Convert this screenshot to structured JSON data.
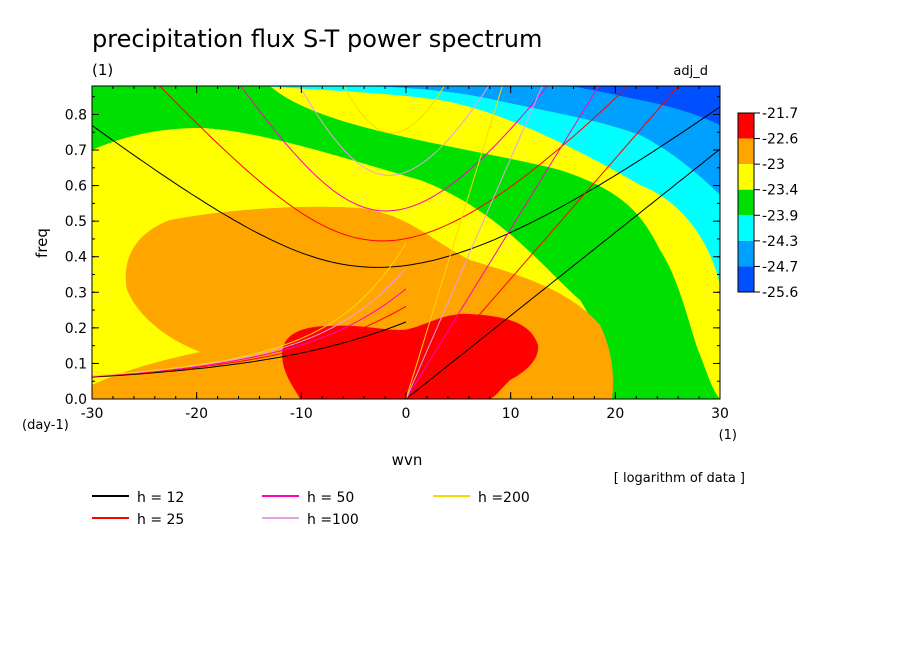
{
  "chart_data": {
    "type": "heatmap",
    "title": "precipitation flux S-T power spectrum",
    "subtitle_left": "(1)",
    "subtitle_right": "adj_d",
    "xlabel": "wvn",
    "ylabel": "freq",
    "x_unit": "(1)",
    "y_unit": "(day-1)",
    "xlim": [
      -30,
      30
    ],
    "ylim": [
      0.0,
      0.88
    ],
    "x_ticks": [
      "-30",
      "-20",
      "-10",
      "0",
      "10",
      "20",
      "30"
    ],
    "y_ticks": [
      "0.0",
      "0.1",
      "0.2",
      "0.3",
      "0.4",
      "0.5",
      "0.6",
      "0.7",
      "0.8"
    ],
    "data_note": "[ logarithm of data ]",
    "colorbar": {
      "labels": [
        "-21.7",
        "-22.6",
        "-23",
        "-23.4",
        "-23.9",
        "-24.3",
        "-24.7",
        "-25.6"
      ],
      "colors": [
        "#ff0000",
        "#ffa500",
        "#ffff00",
        "#00e000",
        "#00ffff",
        "#00a0ff",
        "#0050ff"
      ]
    },
    "regions": [
      {
        "level": "-21.7 and above",
        "approx_extent": "wvn -12 to 12, freq 0.0 to 0.24"
      },
      {
        "level": "-22.6 to -21.7",
        "approx_extent": "wvn -26 to 20, freq 0.0 to 0.54"
      },
      {
        "level": "-23 to -22.6",
        "approx_extent": "wvn -30 to 27, freq 0.0 to 0.75"
      },
      {
        "level": "-23.4 to -23",
        "approx_extent": "freq up to 0.88, lower-left to right side"
      },
      {
        "level": "-23.9 to -23.4",
        "approx_extent": "upper band, wvn -14 to 30"
      },
      {
        "level": "-24.3 to -23.9",
        "approx_extent": "upper band, wvn -4 to 30"
      },
      {
        "level": "-24.7 to -24.3",
        "approx_extent": "top right, wvn 20 to 30"
      }
    ],
    "series": [
      {
        "name": "h = 12",
        "color": "#000000",
        "h": 12
      },
      {
        "name": "h = 25",
        "color": "#ff0000",
        "h": 25
      },
      {
        "name": "h = 50",
        "color": "#ff00c0",
        "h": 50
      },
      {
        "name": "h =100",
        "color": "#e6a0e6",
        "h": 100
      },
      {
        "name": "h =200",
        "color": "#ffd700",
        "h": 200
      }
    ]
  }
}
